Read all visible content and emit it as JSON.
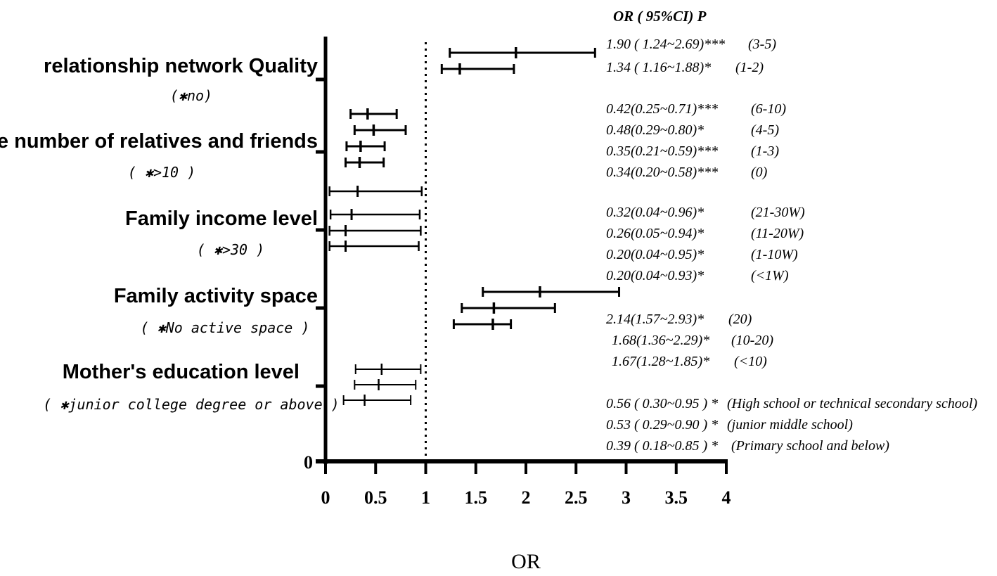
{
  "chart_data": {
    "type": "forest",
    "xlabel": "OR",
    "xlim": [
      0,
      4
    ],
    "xticks": [
      "0",
      "0.5",
      "1",
      "1.5",
      "2",
      "2.5",
      "3",
      "3.5",
      "4"
    ],
    "y_origin_label": "0",
    "reference_line": 1,
    "annotation_header": "OR ( 95%CI)   P",
    "groups": [
      {
        "label": "relationship network Quality",
        "reference": "(✱no)",
        "rows": [
          {
            "or": 1.9,
            "lo": 1.24,
            "hi": 2.69,
            "text": "1.90 ( 1.24~2.69)***",
            "level": "(3-5)"
          },
          {
            "or": 1.34,
            "lo": 1.16,
            "hi": 1.88,
            "text": "1.34 ( 1.16~1.88)*",
            "level": "(1-2)"
          }
        ]
      },
      {
        "label": "The number of relatives and friends",
        "reference": "( ✱>10 )",
        "rows": [
          {
            "or": 0.42,
            "lo": 0.25,
            "hi": 0.71,
            "text": "0.42(0.25~0.71)***",
            "level": "(6-10)"
          },
          {
            "or": 0.48,
            "lo": 0.29,
            "hi": 0.8,
            "text": "0.48(0.29~0.80)*",
            "level": "(4-5)"
          },
          {
            "or": 0.35,
            "lo": 0.21,
            "hi": 0.59,
            "text": "0.35(0.21~0.59)***",
            "level": "(1-3)"
          },
          {
            "or": 0.34,
            "lo": 0.2,
            "hi": 0.58,
            "text": "0.34(0.20~0.58)***",
            "level": "(0)"
          }
        ]
      },
      {
        "label": "Family income level",
        "reference": "( ✱>30 )",
        "rows": [
          {
            "or": 0.32,
            "lo": 0.04,
            "hi": 0.96,
            "text": "0.32(0.04~0.96)*",
            "level": "(21-30W)"
          },
          {
            "or": 0.26,
            "lo": 0.05,
            "hi": 0.94,
            "text": "0.26(0.05~0.94)*",
            "level": "(11-20W)"
          },
          {
            "or": 0.2,
            "lo": 0.04,
            "hi": 0.95,
            "text": "0.20(0.04~0.95)*",
            "level": "(1-10W)"
          },
          {
            "or": 0.2,
            "lo": 0.04,
            "hi": 0.93,
            "text": "0.20(0.04~0.93)*",
            "level": "(<1W)"
          }
        ]
      },
      {
        "label": "Family activity space",
        "reference": "( ✱No active space )",
        "rows": [
          {
            "or": 2.14,
            "lo": 1.57,
            "hi": 2.93,
            "text": "2.14(1.57~2.93)*",
            "level": "(20)"
          },
          {
            "or": 1.68,
            "lo": 1.36,
            "hi": 2.29,
            "text": "1.68(1.36~2.29)*",
            "level": "(10-20)"
          },
          {
            "or": 1.67,
            "lo": 1.28,
            "hi": 1.85,
            "text": "1.67(1.28~1.85)*",
            "level": "(<10)"
          }
        ]
      },
      {
        "label": "Mother's education level",
        "reference": "( ✱junior college degree or above )",
        "rows": [
          {
            "or": 0.56,
            "lo": 0.3,
            "hi": 0.95,
            "text": "0.56 ( 0.30~0.95 ) *",
            "level": "(High school or technical secondary school)"
          },
          {
            "or": 0.53,
            "lo": 0.29,
            "hi": 0.9,
            "text": "0.53 ( 0.29~0.90 ) *",
            "level": "(junior middle school)"
          },
          {
            "or": 0.39,
            "lo": 0.18,
            "hi": 0.85,
            "text": "0.39 ( 0.18~0.85 ) *",
            "level": "(Primary school and below)"
          }
        ]
      }
    ]
  }
}
